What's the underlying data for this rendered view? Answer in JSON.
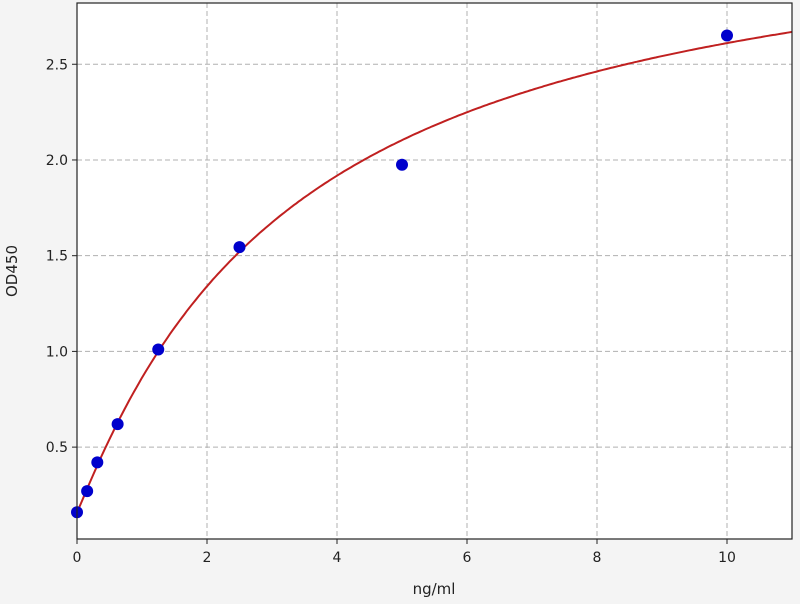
{
  "chart_data": {
    "type": "scatter",
    "title": "",
    "xlabel": "ng/ml",
    "ylabel": "OD450",
    "xlim": [
      0,
      11
    ],
    "ylim": [
      0.02,
      2.82
    ],
    "xticks": [
      0,
      2,
      4,
      6,
      8,
      10
    ],
    "yticks": [
      0.5,
      1.0,
      1.5,
      2.0,
      2.5
    ],
    "xtick_labels": [
      "0",
      "2",
      "4",
      "6",
      "8",
      "10"
    ],
    "ytick_labels": [
      "0.5",
      "1.0",
      "1.5",
      "2.0",
      "2.5"
    ],
    "grid": true,
    "points": {
      "x": [
        0,
        0.156,
        0.3125,
        0.625,
        1.25,
        2.5,
        5,
        10
      ],
      "y": [
        0.16,
        0.27,
        0.42,
        0.62,
        1.01,
        1.545,
        1.975,
        2.65
      ],
      "color": "#0000cc"
    },
    "fit_curve": {
      "color": "#c02020"
    }
  }
}
